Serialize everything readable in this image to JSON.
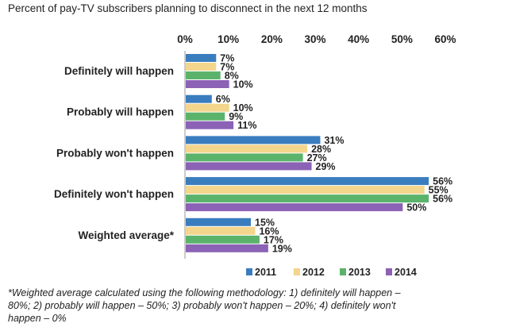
{
  "chart_data": {
    "type": "bar",
    "orientation": "horizontal",
    "title": "Percent of pay-TV subscribers planning  to disconnect in the next 12 months",
    "categories": [
      "Definitely will happen",
      "Probably will happen",
      "Probably won't happen",
      "Definitely won't happen",
      "Weighted average*"
    ],
    "series": [
      {
        "name": "2011",
        "color": "#3a7dbf",
        "values": [
          7,
          6,
          31,
          56,
          15
        ]
      },
      {
        "name": "2012",
        "color": "#f3d58c",
        "values": [
          7,
          10,
          28,
          55,
          16
        ]
      },
      {
        "name": "2013",
        "color": "#5bb36b",
        "values": [
          8,
          9,
          27,
          56,
          17
        ]
      },
      {
        "name": "2014",
        "color": "#8b62b5",
        "values": [
          10,
          11,
          29,
          50,
          19
        ]
      }
    ],
    "xlim": [
      0,
      60
    ],
    "x_ticks": [
      "0%",
      "10%",
      "20%",
      "30%",
      "40%",
      "50%",
      "60%"
    ],
    "value_suffix": "%",
    "legend_position": "bottom",
    "grid": false,
    "footnote": "*Weighted average calculated using the following methodology:  1) definitely will happen – 80%; 2) probably will happen – 50%; 3) probably won't happen – 20%; 4) definitely won't happen – 0%"
  }
}
